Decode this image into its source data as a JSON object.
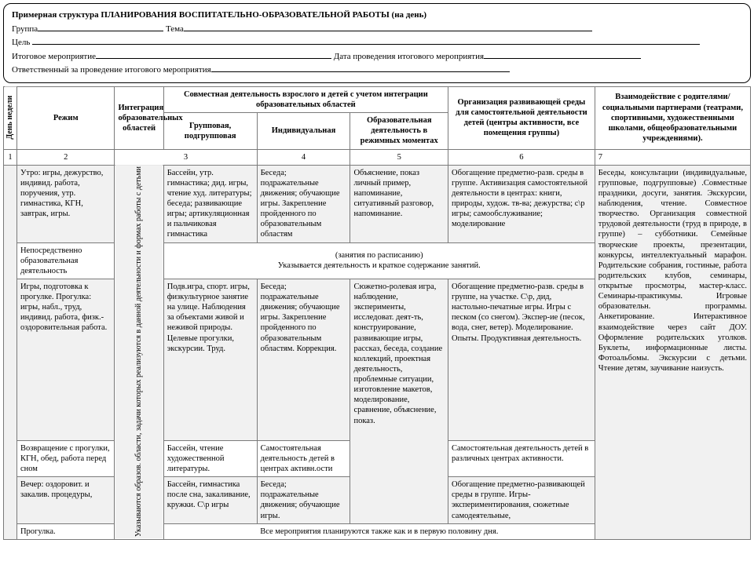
{
  "header": {
    "title": "Примерная структура  ПЛАНИРОВАНИЯ  ВОСПИТАТЕЛЬНО-ОБРАЗОВАТЕЛЬНОЙ  РАБОТЫ (на день)",
    "group_label": "Группа",
    "theme_label": "Тема",
    "goal_label": "Цель",
    "final_event_label": "Итоговое мероприятие",
    "final_date_label": "Дата проведения итогового мероприятия",
    "responsible_label": "Ответственный за проведение итогового мероприятия"
  },
  "thead": {
    "day": "День недели",
    "regime": "Режим",
    "integration": "Интеграция образовательных областей",
    "joint": "Совместная  деятельность взрослого  и детей с учетом интеграции образовательных  областей",
    "group_sub": "Групповая, подгрупповая",
    "individual": "Индивидуальная",
    "edu_moments": "Образовательная деятельность в режимных моментах",
    "env": "Организация развивающей среды для самостоятельной деятельности детей (центры активности, все помещения группы)",
    "parents": "Взаимодействие с родителями/ социальными партнерами (театрами, спортивными,  художественными школами, общеобразовательными учреждениями)."
  },
  "nums": {
    "n1": "1",
    "n2": "2",
    "n3": "3",
    "n4": "4",
    "n5": "5",
    "n6": "6",
    "n7": "7"
  },
  "col3text": "Указываются образов. области, задачи которых  реализуются в данной деятельности  и формах работы с детьми",
  "rows": {
    "r1": {
      "regime": "Утро: игры, дежурство, индивид. работа, поручения,  утр. гимнастика, КГН, завтрак,  игры.",
      "c4": "Бассейн, утр. гимнастика; дид. игры, чтение худ. литературы;  беседа; развивающие игры; артикуляционная и пальчиковая гимнастика",
      "c5": "Беседа; подражательные движения; обучающие игры. Закрепление пройденного по образовательным областям",
      "c6": "Объяснение, показ  личный пример, напоминание, ситуативный  разговор, напоминание.",
      "c7": "Обогащение предметно-разв. среды в группе. Активизация самостоятельной деятельности в центрах: книги, природы,  худож. тв-ва; дежурства; с\\р игры; самообслуживание; моделирование"
    },
    "r2": {
      "regime": "Непосредственно образовательная деятельность",
      "merged": "(занятия по расписанию)\nУказывается деятельность и краткое содержание занятий."
    },
    "r3": {
      "regime": "Игры, подготовка к прогулке. Прогулка: игры,   набл., труд, индивид. работа, физк.-оздоровительная  работа.",
      "c4": "Подв.игра, спорт. игры, физкультурное занятие на улице. Наблюдения за объектами живой и неживой природы.  Целевые прогулки, экскурсии. Труд.",
      "c5": "Беседа; подражательные движения; обучающие игры. Закрепление пройденного по образовательным областям. Коррекция.",
      "c6": "Сюжетно-ролевая игра, наблюдение, эксперименты, исследоват. деят-ть, конструирование, развивающие игры, рассказ, беседа, создание коллекций, проектная деятельность, проблемные ситуации, изготовление макетов, моделирование, сравнение, объяснение, показ.",
      "c7": "Обогащение предметно-разв. среды в группе, на участке. С\\р, дид, настольно-печатные игры. Игры с песком (со снегом). Экспер-ие (песок, вода, снег, ветер). Моделирование. Опыты. Продуктивная деятельность."
    },
    "r4": {
      "regime": "Возвращение с прогулки, КГН, обед, работа перед сном",
      "c4": "Бассейн, чтение художественной литературы.",
      "c5": "Самостоятельная деятельность детей в центрах активн.ости",
      "c7": "Самостоятельная деятельность детей в различных центрах активности."
    },
    "r5": {
      "regime": "Вечер: оздоровит. и закалив.  процедуры,",
      "c4": "Бассейн, гимнастика после сна, закаливание, кружки. С\\р игры",
      "c5": "Беседа; подражательные движения; обучающие игры.",
      "c7": "Обогащение предметно-развивающей среды в группе. Игры-экспериментирования, сюжетные самодеятельные,"
    },
    "r6": {
      "regime": "Прогулка.",
      "merged": "Все мероприятия планируются  также как и  в первую половину дня."
    },
    "parents": "Беседы, консультации (индивидуальные, групповые, подгрупповые) .Совместные праздники, досуги,  занятия. Экскурсии, наблюдения, чтение. Совместное творчество. Организация совместной трудовой деятельности (труд в природе, в группе) – субботники. Семейные творческие проекты, презентации, конкурсы, интеллектуальный марафон.\nРодительские собрания, гостиные, работа родительских клубов, семинары, открытые просмотры, мастер-класс. Семинары-практикумы.\nИгровые образовательн. программы.\nАнкетирование.\nИнтерактивное  взаимодействие через сайт ДОУ. Оформление родительских уголков. Буклеты, информационные листы. Фотоальбомы.\nЭкскурсии с детьми. Чтение детям, заучивание наизусть."
  }
}
